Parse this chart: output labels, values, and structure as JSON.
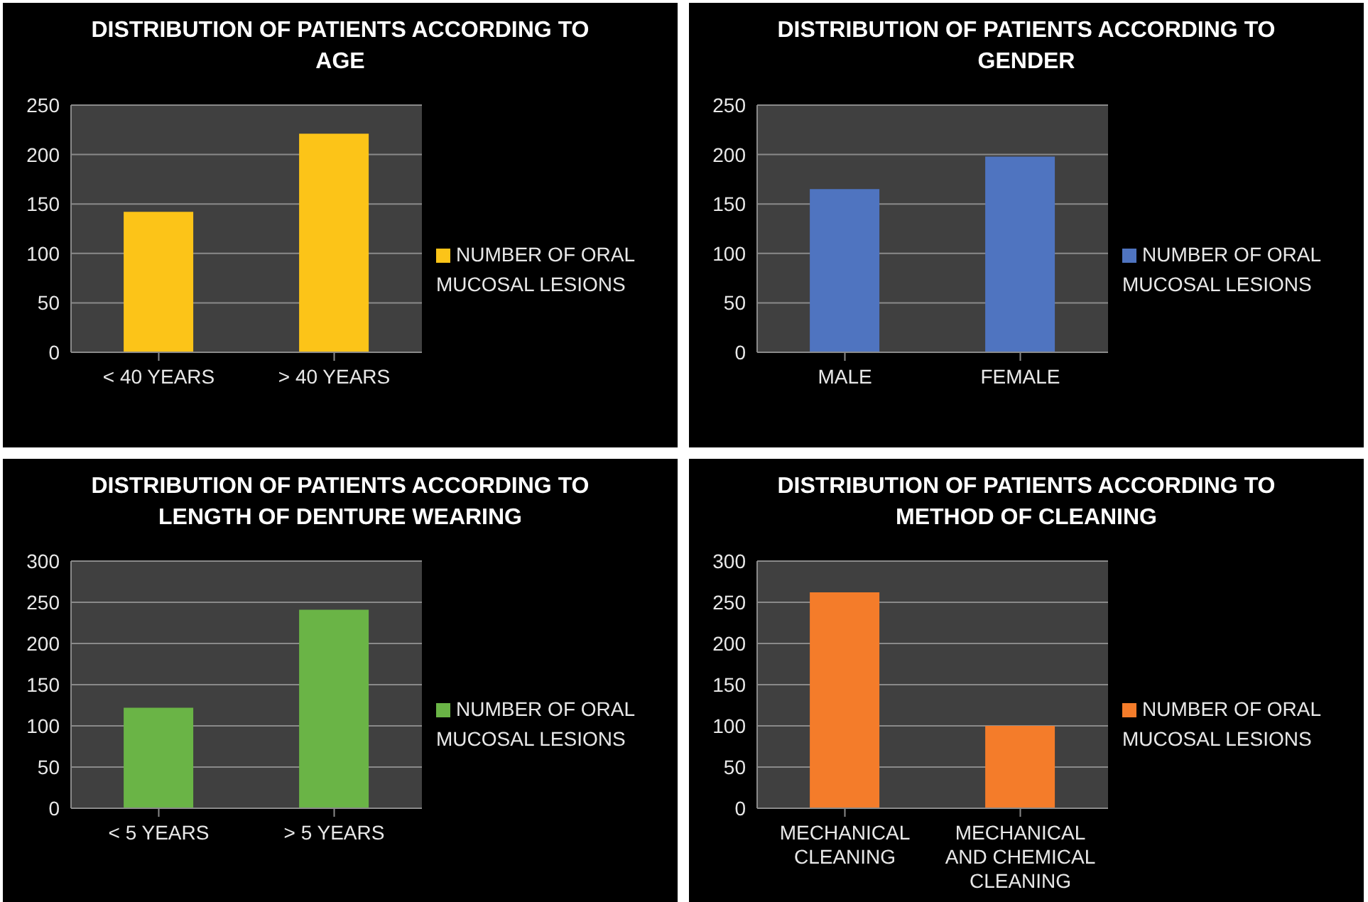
{
  "chart_data": [
    {
      "type": "bar",
      "title": "DISTRIBUTION OF PATIENTS ACCORDING TO AGE",
      "categories": [
        "< 40 YEARS",
        "> 40 YEARS"
      ],
      "series": [
        {
          "name": "NUMBER OF ORAL MUCOSAL LESIONS",
          "color": "#fcc418",
          "values": [
            142,
            221
          ]
        }
      ],
      "ylim": [
        0,
        250
      ],
      "yticks": [
        0,
        50,
        100,
        150,
        200,
        250
      ],
      "grid": "y",
      "legend": "right"
    },
    {
      "type": "bar",
      "title": "DISTRIBUTION OF PATIENTS ACCORDING TO GENDER",
      "categories": [
        "MALE",
        "FEMALE"
      ],
      "series": [
        {
          "name": "NUMBER OF ORAL MUCOSAL LESIONS",
          "color": "#4f74c0",
          "values": [
            165,
            198
          ]
        }
      ],
      "ylim": [
        0,
        250
      ],
      "yticks": [
        0,
        50,
        100,
        150,
        200,
        250
      ],
      "grid": "y",
      "legend": "right"
    },
    {
      "type": "bar",
      "title": "DISTRIBUTION OF PATIENTS ACCORDING TO LENGTH OF DENTURE WEARING",
      "categories": [
        "< 5 YEARS",
        "> 5 YEARS"
      ],
      "series": [
        {
          "name": "NUMBER OF ORAL MUCOSAL LESIONS",
          "color": "#6ab446",
          "values": [
            122,
            241
          ]
        }
      ],
      "ylim": [
        0,
        300
      ],
      "yticks": [
        0,
        50,
        100,
        150,
        200,
        250,
        300
      ],
      "grid": "y",
      "legend": "right"
    },
    {
      "type": "bar",
      "title": "DISTRIBUTION OF PATIENTS ACCORDING TO METHOD OF CLEANING",
      "categories": [
        "MECHANICAL CLEANING",
        "MECHANICAL AND CHEMICAL CLEANING"
      ],
      "series": [
        {
          "name": "NUMBER OF ORAL MUCOSAL LESIONS",
          "color": "#f47c2a",
          "values": [
            262,
            100
          ]
        }
      ],
      "ylim": [
        0,
        300
      ],
      "yticks": [
        0,
        50,
        100,
        150,
        200,
        250,
        300
      ],
      "grid": "y",
      "legend": "right"
    }
  ]
}
